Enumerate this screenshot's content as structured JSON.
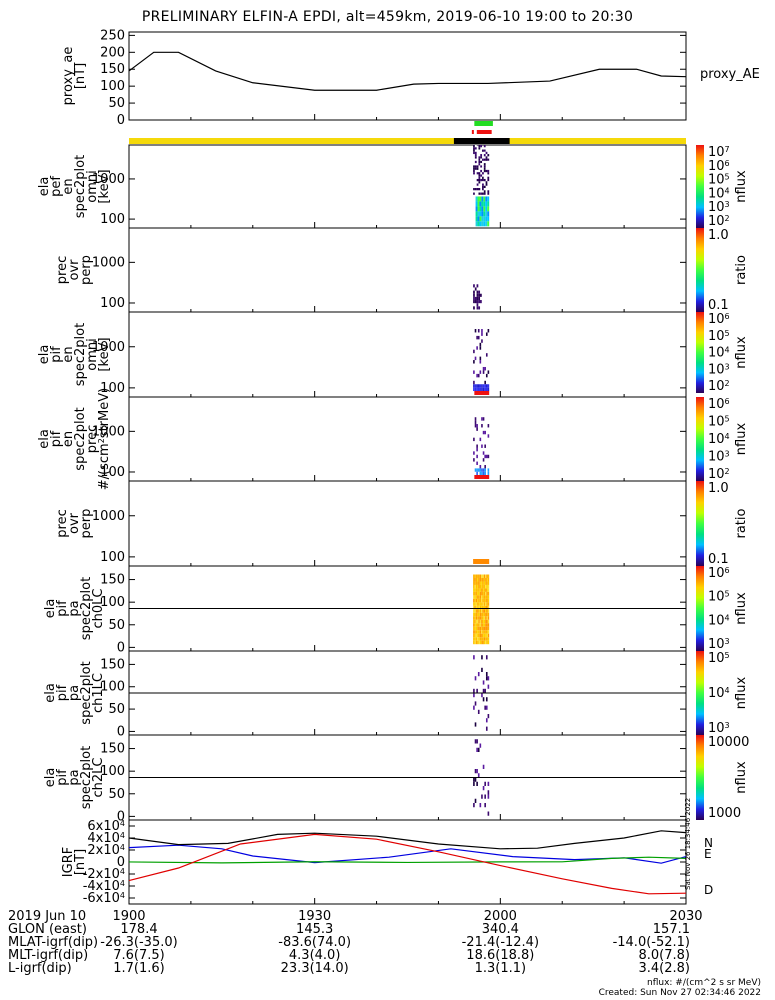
{
  "title": "PRELIMINARY ELFIN-A EPDI, alt=459km, 2019-06-10 19:00 to 20:30",
  "chart_data": [
    {
      "id": "proxy_ae",
      "type": "line",
      "ylabel": [
        "proxy_ae",
        "[nT]"
      ],
      "legend": "proxy_AE",
      "ylim": [
        0,
        260
      ],
      "yticks": [
        "0",
        "50",
        "100",
        "150",
        "200",
        "250"
      ],
      "ytick_values": [
        0,
        50,
        100,
        150,
        200,
        250
      ],
      "x_minutes": [
        0,
        4,
        8,
        14,
        20,
        30,
        40,
        46,
        50,
        58,
        68,
        76,
        82,
        86,
        90
      ],
      "values": [
        145,
        200,
        200,
        145,
        110,
        88,
        88,
        106,
        108,
        108,
        115,
        150,
        150,
        130,
        128
      ]
    },
    {
      "id": "ela_pef_en_spec2plot_omni",
      "type": "heatmap",
      "ylabel": [
        "ela",
        "pef",
        "en",
        "spec2plot",
        "omni",
        "[keV]"
      ],
      "yticks": [
        "100",
        "1000"
      ],
      "ytick_values": [
        100,
        1000
      ],
      "colorbar": {
        "label": "nflux",
        "ticks": [
          "10^7",
          "10^6",
          "10^5",
          "10^4",
          "10^3",
          "10^2"
        ]
      }
    },
    {
      "id": "prec_ovr_perp_1",
      "type": "heatmap",
      "ylabel": [
        "prec",
        "ovr",
        "perp"
      ],
      "yticks": [
        "100",
        "1000"
      ],
      "ytick_values": [
        100,
        1000
      ],
      "colorbar": {
        "label": "ratio",
        "ticks": [
          "1.0",
          "0.1"
        ]
      }
    },
    {
      "id": "ela_pif_en_spec2plot_omni",
      "type": "heatmap",
      "ylabel": [
        "ela",
        "pif",
        "en",
        "spec2plot",
        "omni",
        "[keV]"
      ],
      "yticks": [
        "100",
        "1000"
      ],
      "ytick_values": [
        100,
        1000
      ],
      "colorbar": {
        "label": "nflux",
        "ticks": [
          "10^6",
          "10^5",
          "10^4",
          "10^3",
          "10^2"
        ]
      }
    },
    {
      "id": "ela_pif_en_spec2plot_prec",
      "type": "heatmap",
      "ylabel": [
        "ela",
        "pif",
        "en",
        "spec2plot",
        "prec",
        "#/(scm^2strMeV)"
      ],
      "yticks": [
        "100",
        "1000"
      ],
      "ytick_values": [
        100,
        1000
      ],
      "colorbar": {
        "label": "nflux",
        "ticks": [
          "10^6",
          "10^5",
          "10^4",
          "10^3",
          "10^2"
        ]
      }
    },
    {
      "id": "prec_ovr_perp_2",
      "type": "heatmap",
      "ylabel": [
        "prec",
        "ovr",
        "perp"
      ],
      "yticks": [
        "100",
        "1000"
      ],
      "ytick_values": [
        100,
        1000
      ],
      "colorbar": {
        "label": "ratio",
        "ticks": [
          "1.0",
          "0.1"
        ]
      }
    },
    {
      "id": "ela_pif_pa_spec2plot_ch0LC",
      "type": "heatmap",
      "ylabel": [
        "ela",
        "pif",
        "pa",
        "spec2plot",
        "ch0LC"
      ],
      "yticks": [
        "0",
        "50",
        "100",
        "150"
      ],
      "ytick_values": [
        0,
        50,
        100,
        150
      ],
      "colorbar": {
        "label": "nflux",
        "ticks": [
          "10^6",
          "10^5",
          "10^4",
          "10^3"
        ]
      }
    },
    {
      "id": "ela_pif_pa_spec2plot_ch1LC",
      "type": "heatmap",
      "ylabel": [
        "ela",
        "pif",
        "pa",
        "spec2plot",
        "ch1LC"
      ],
      "yticks": [
        "0",
        "50",
        "100",
        "150"
      ],
      "ytick_values": [
        0,
        50,
        100,
        150
      ],
      "colorbar": {
        "label": "nflux",
        "ticks": [
          "10^5",
          "10^4",
          "10^3"
        ]
      }
    },
    {
      "id": "ela_pif_pa_spec2plot_ch2LC",
      "type": "heatmap",
      "ylabel": [
        "ela",
        "pif",
        "pa",
        "spec2plot",
        "ch2LC"
      ],
      "yticks": [
        "0",
        "50",
        "100",
        "150"
      ],
      "ytick_values": [
        0,
        50,
        100,
        150
      ],
      "colorbar": {
        "label": "nflux",
        "ticks": [
          "10000",
          "1000"
        ]
      }
    },
    {
      "id": "igrf",
      "type": "line",
      "ylabel": [
        "IGRF",
        "[nT]"
      ],
      "ylim": [
        -70000,
        70000
      ],
      "yticks": [
        "6x10^4",
        "4x10^4",
        "2x10^4",
        "0",
        "-2x10^4",
        "-4x10^4",
        "-6x10^4"
      ],
      "ytick_values": [
        60000,
        40000,
        20000,
        0,
        -20000,
        -40000,
        -60000
      ],
      "legend": [
        "N",
        "E",
        "D"
      ],
      "series": [
        {
          "name": "N",
          "color": "#0000e0",
          "x_minutes": [
            0,
            8,
            15,
            20,
            30,
            42,
            52,
            62,
            72,
            80,
            86,
            90
          ],
          "values": [
            24000,
            28000,
            22000,
            10000,
            -1000,
            8000,
            22000,
            9000,
            4000,
            7000,
            -2000,
            9000
          ]
        },
        {
          "name": "E",
          "color": "#00a000",
          "x_minutes": [
            0,
            15,
            30,
            45,
            60,
            70,
            78,
            84,
            90
          ],
          "values": [
            100,
            -1500,
            400,
            -700,
            200,
            300,
            6000,
            8000,
            6000
          ]
        },
        {
          "name": "D",
          "color": "#e00000",
          "x_minutes": [
            0,
            8,
            18,
            30,
            40,
            50,
            60,
            70,
            78,
            84,
            90
          ],
          "values": [
            -31000,
            -10000,
            30000,
            46000,
            38000,
            17000,
            -6000,
            -28000,
            -44000,
            -53000,
            -52000
          ]
        },
        {
          "name": "total",
          "color": "#000000",
          "x_minutes": [
            0,
            8,
            16,
            24,
            30,
            40,
            50,
            60,
            66,
            72,
            80,
            86,
            90
          ],
          "values": [
            40000,
            29000,
            31000,
            46000,
            48000,
            43000,
            30000,
            22000,
            23000,
            31000,
            40000,
            52000,
            49000
          ]
        }
      ]
    }
  ],
  "x_axis": {
    "date_label": "2019 Jun 10",
    "tick_labels": [
      "1900",
      "1930",
      "2000",
      "2030"
    ],
    "tick_minutes": [
      0,
      30,
      60,
      90
    ],
    "rows": [
      {
        "label": "GLON (east)",
        "values": [
          "178.4",
          "145.3",
          "340.4",
          "157.1"
        ]
      },
      {
        "label": "MLAT-igrf(dip)",
        "values": [
          "-26.3(-35.0)",
          "-83.6(74.0)",
          "-21.4(-12.4)",
          "-14.0(-52.1)"
        ]
      },
      {
        "label": "MLT-igrf(dip)",
        "values": [
          "7.6(7.5)",
          "4.3(4.0)",
          "18.6(18.8)",
          "8.0(7.8)"
        ]
      },
      {
        "label": "L-igrf(dip)",
        "values": [
          "1.7(1.6)",
          "23.3(14.0)",
          "1.3(1.1)",
          "3.4(2.8)"
        ]
      }
    ]
  },
  "footer": {
    "units": "nflux: #/(cm^2 s sr MeV)",
    "created": "Created: Sun Nov 27 02:34:46 2022",
    "side_stamp": "Sat Nov 26 18:34:46 2022"
  },
  "colors": {
    "science_bar": "#f5d90a",
    "science_bar_dark": "#000000",
    "green_marker": "#22dd22",
    "red_marker": "#ee1111"
  }
}
